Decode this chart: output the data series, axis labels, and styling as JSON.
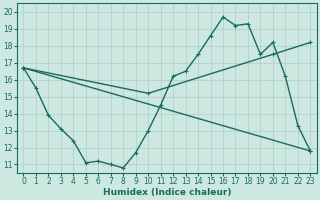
{
  "title": "",
  "xlabel": "Humidex (Indice chaleur)",
  "bg_color": "#cce8e0",
  "line_color": "#1a6b5a",
  "grid_color": "#aacfc8",
  "xlim": [
    -0.5,
    23.5
  ],
  "ylim": [
    10.5,
    20.5
  ],
  "yticks": [
    11,
    12,
    13,
    14,
    15,
    16,
    17,
    18,
    19,
    20
  ],
  "xticks": [
    0,
    1,
    2,
    3,
    4,
    5,
    6,
    7,
    8,
    9,
    10,
    11,
    12,
    13,
    14,
    15,
    16,
    17,
    18,
    19,
    20,
    21,
    22,
    23
  ],
  "line1_x": [
    0,
    1,
    2,
    3,
    4,
    5,
    6,
    7,
    8,
    9,
    10,
    11,
    12,
    13,
    14,
    15,
    16,
    17,
    18,
    19,
    20,
    21,
    22,
    23
  ],
  "line1_y": [
    16.7,
    15.5,
    13.9,
    13.1,
    12.4,
    11.1,
    11.2,
    11.0,
    10.8,
    11.7,
    13.0,
    14.5,
    16.2,
    16.5,
    17.5,
    18.6,
    19.7,
    19.2,
    19.3,
    17.5,
    18.2,
    16.2,
    13.3,
    11.8
  ],
  "line2_x": [
    0,
    23
  ],
  "line2_y": [
    16.7,
    11.8
  ],
  "line3_x": [
    0,
    10,
    20,
    23
  ],
  "line3_y": [
    16.7,
    15.2,
    17.5,
    18.2
  ],
  "xlabel_fontsize": 6.5,
  "tick_fontsize": 5.5,
  "lw": 1.0,
  "marker_size": 3.5
}
